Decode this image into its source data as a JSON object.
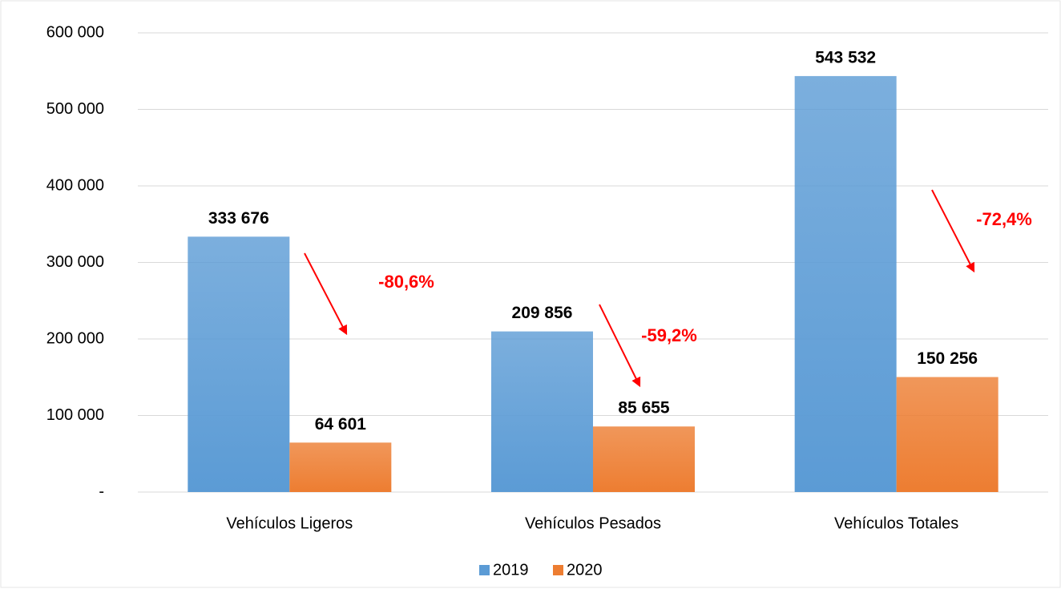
{
  "chart_data": {
    "type": "bar",
    "categories": [
      "Vehículos Ligeros",
      "Vehículos Pesados",
      "Vehículos Totales"
    ],
    "series": [
      {
        "name": "2019",
        "color": "#5b9bd5",
        "values": [
          333676,
          209856,
          543532
        ],
        "value_labels": [
          "333 676",
          "209 856",
          "543 532"
        ]
      },
      {
        "name": "2020",
        "color": "#ed7d31",
        "values": [
          64601,
          85655,
          150256
        ],
        "value_labels": [
          "64 601",
          "85 655",
          "150 256"
        ]
      }
    ],
    "annotations": [
      "-80,6%",
      "-59,2%",
      "-72,4%"
    ],
    "annotation_color": "#ff0000",
    "ylim": [
      0,
      600000
    ],
    "yticks": [
      {
        "value": 0,
        "label": "-"
      },
      {
        "value": 100000,
        "label": "100 000"
      },
      {
        "value": 200000,
        "label": "200 000"
      },
      {
        "value": 300000,
        "label": "300 000"
      },
      {
        "value": 400000,
        "label": "400 000"
      },
      {
        "value": 500000,
        "label": "500 000"
      },
      {
        "value": 600000,
        "label": "600 000"
      }
    ],
    "grid": true,
    "legend": "bottom"
  }
}
